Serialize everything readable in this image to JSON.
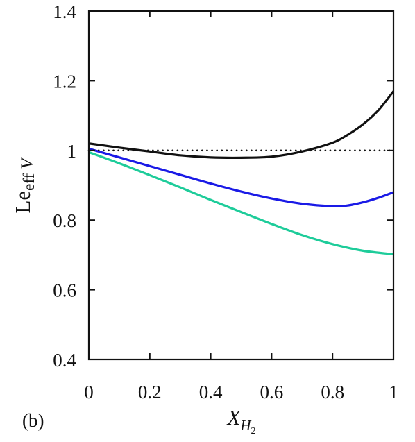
{
  "panel_label": "(b)",
  "chart_data": {
    "type": "line",
    "xlabel": {
      "main": "X",
      "sub": "H",
      "subsub": "2"
    },
    "ylabel": {
      "main": "Le",
      "sub": "eff",
      "suffix": "V"
    },
    "xlim": [
      0,
      1
    ],
    "ylim": [
      0.4,
      1.4
    ],
    "xticks": [
      0,
      0.2,
      0.4,
      0.6,
      0.8,
      1
    ],
    "yticks": [
      0.4,
      0.6,
      0.8,
      1,
      1.2,
      1.4
    ],
    "xtick_labels": [
      "0",
      "0.2",
      "0.4",
      "0.6",
      "0.8",
      "1"
    ],
    "ytick_labels": [
      "0.4",
      "0.6",
      "0.8",
      "1",
      "1.2",
      "1.4"
    ],
    "grid": false,
    "series": [
      {
        "color": "#111111",
        "style": "solid",
        "x": [
          0,
          0.1,
          0.2,
          0.3,
          0.4,
          0.5,
          0.6,
          0.7,
          0.8,
          0.85,
          0.9,
          0.95,
          1.0
        ],
        "y": [
          1.02,
          1.008,
          0.997,
          0.986,
          0.98,
          0.979,
          0.982,
          0.997,
          1.022,
          1.045,
          1.075,
          1.115,
          1.17
        ]
      },
      {
        "color": "#1a1ae6",
        "style": "solid",
        "x": [
          0,
          0.1,
          0.2,
          0.3,
          0.4,
          0.5,
          0.6,
          0.7,
          0.8,
          0.85,
          0.9,
          0.95,
          1.0
        ],
        "y": [
          1.005,
          0.98,
          0.955,
          0.93,
          0.905,
          0.882,
          0.862,
          0.847,
          0.84,
          0.842,
          0.851,
          0.864,
          0.88
        ]
      },
      {
        "color": "#1ecc9a",
        "style": "solid",
        "x": [
          0,
          0.1,
          0.2,
          0.3,
          0.4,
          0.5,
          0.6,
          0.7,
          0.8,
          0.9,
          1.0
        ],
        "y": [
          0.995,
          0.963,
          0.929,
          0.894,
          0.858,
          0.823,
          0.789,
          0.757,
          0.731,
          0.712,
          0.702
        ]
      },
      {
        "color": "#111111",
        "style": "dotted",
        "x": [
          0,
          1
        ],
        "y": [
          1,
          1
        ]
      }
    ]
  }
}
